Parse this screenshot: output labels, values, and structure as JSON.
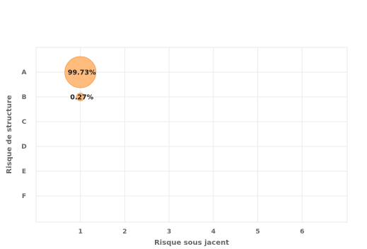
{
  "chart_data": {
    "type": "scatter",
    "xlabel": "Risque sous jacent",
    "ylabel": "Risque de structure",
    "x_ticks": [
      1,
      2,
      3,
      4,
      5,
      6
    ],
    "xlim": [
      0,
      7
    ],
    "y_categories": [
      "A",
      "B",
      "C",
      "D",
      "E",
      "F"
    ],
    "grid": true,
    "bubble_color": "#ffb066",
    "bubble_stroke": "#f5a55a",
    "points": [
      {
        "x": 1,
        "y": "A",
        "value": 99.73,
        "label": "99.73%"
      },
      {
        "x": 1,
        "y": "B",
        "value": 0.27,
        "label": "0.27%"
      }
    ]
  }
}
